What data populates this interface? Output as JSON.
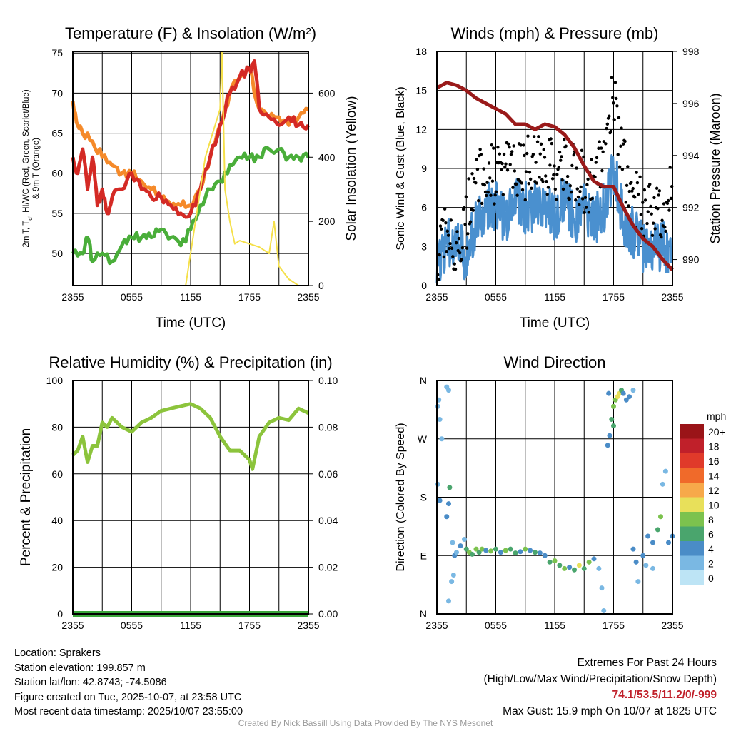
{
  "chart_data": [
    {
      "id": "temp",
      "type": "line",
      "title": "Temperature (F) & Insolation (W/m²)",
      "xlabel": "Time (UTC)",
      "ylabel": "2m T, Td, HI/WC (Red, Green, Scarlet/Blue) & 9m T (Orange)",
      "ylabel_line1": "2m T, T_d, HI/WC (Red, Green, Scarlet/Blue)",
      "ylabel_line2": "& 9m T (Orange)",
      "y2label": "Solar Insolation (Yellow)",
      "xlim": [
        0,
        24
      ],
      "ylim": [
        46,
        75.2
      ],
      "y2lim": [
        0,
        730
      ],
      "xticks": [
        "2355",
        "0555",
        "1155",
        "1755",
        "2355"
      ],
      "yticks": [
        50,
        55,
        60,
        65,
        70,
        75
      ],
      "y2ticks": [
        0,
        200,
        400,
        600
      ],
      "series": [
        {
          "name": "9m T",
          "color": "#f58a2a",
          "axis": "left",
          "x": [
            0,
            0.5,
            1,
            2,
            3,
            4,
            5,
            6,
            7,
            8,
            9,
            10,
            11,
            12,
            13,
            14,
            15,
            16,
            17,
            18,
            19,
            20,
            21,
            22,
            23,
            24
          ],
          "y": [
            69,
            66,
            65,
            64,
            62,
            61,
            60,
            60,
            59,
            58,
            57,
            56,
            56,
            56,
            58,
            62,
            66,
            70,
            72,
            73,
            68,
            67,
            67,
            66,
            67,
            68
          ]
        },
        {
          "name": "2m T",
          "color": "#d42a25",
          "axis": "left",
          "x": [
            0,
            0.5,
            1,
            1.5,
            2,
            2.5,
            3,
            3.5,
            4,
            5,
            6,
            7,
            8,
            9,
            10,
            11,
            12,
            13,
            14,
            15,
            16,
            17,
            18,
            18.5,
            19,
            20,
            21,
            22,
            23,
            24
          ],
          "y": [
            62,
            60,
            63,
            58,
            62,
            56,
            58,
            55,
            57,
            58,
            60,
            58,
            57,
            57,
            56,
            55,
            55,
            58,
            62,
            66,
            70,
            72,
            73,
            74,
            68,
            67,
            66,
            67,
            66,
            66
          ]
        },
        {
          "name": "Dew point",
          "color": "#4aae3a",
          "axis": "left",
          "x": [
            0,
            1,
            1.5,
            2,
            3,
            4,
            5,
            6,
            7,
            8,
            9,
            10,
            11,
            12,
            13,
            14,
            15,
            16,
            17,
            18,
            19,
            20,
            21,
            22,
            23,
            24
          ],
          "y": [
            50,
            50,
            52,
            49,
            50,
            49,
            51,
            52,
            52,
            52,
            53,
            52,
            51,
            53,
            56,
            58,
            59,
            61,
            62,
            62,
            62,
            63,
            63,
            62,
            62,
            62
          ]
        },
        {
          "name": "Solar",
          "color": "#f5e04a",
          "axis": "right",
          "width": 2,
          "x": [
            0,
            11.5,
            12,
            12.5,
            13,
            13.5,
            14,
            14.5,
            15,
            15.2,
            15.5,
            16,
            16.5,
            17,
            18,
            19,
            20,
            20.5,
            21,
            22,
            23,
            24
          ],
          "y": [
            0,
            0,
            100,
            200,
            300,
            400,
            450,
            500,
            550,
            730,
            300,
            200,
            130,
            140,
            130,
            120,
            100,
            200,
            60,
            20,
            0,
            0
          ]
        }
      ]
    },
    {
      "id": "wind",
      "type": "line",
      "title": "Winds (mph) & Pressure (mb)",
      "xlabel": "Time (UTC)",
      "ylabel": "Sonic Wind & Gust (Blue, Black)",
      "y2label": "Station Pressure (Maroon)",
      "xlim": [
        0,
        24
      ],
      "ylim": [
        0,
        18
      ],
      "y2lim": [
        989,
        998
      ],
      "xticks": [
        "2355",
        "0555",
        "1155",
        "1755",
        "2355"
      ],
      "yticks": [
        0,
        3,
        6,
        9,
        12,
        15,
        18
      ],
      "y2ticks": [
        990,
        992,
        994,
        996,
        998
      ],
      "series": [
        {
          "name": "Sonic Wind",
          "color": "#4a90cf",
          "axis": "left",
          "x": [
            0,
            1,
            2,
            3,
            4,
            5,
            6,
            7,
            8,
            9,
            10,
            11,
            12,
            13,
            14,
            15,
            16,
            17,
            18,
            19,
            20,
            21,
            22,
            23,
            24
          ],
          "y": [
            1,
            3,
            4,
            2,
            5,
            6,
            6,
            5,
            7,
            6,
            6,
            6,
            5,
            7,
            5,
            6,
            5,
            6,
            9,
            5,
            4,
            3,
            3,
            3,
            2
          ]
        },
        {
          "name": "Gust",
          "color": "#000000",
          "axis": "left",
          "scatter": true,
          "x": [
            0,
            1,
            2,
            3,
            4,
            5,
            6,
            7,
            8,
            9,
            10,
            11,
            12,
            13,
            14,
            15,
            16,
            17,
            18,
            19,
            20,
            21,
            22,
            23,
            24
          ],
          "y": [
            2,
            5,
            3,
            5,
            8,
            9,
            8,
            9,
            9,
            9,
            9,
            10,
            8,
            9,
            9,
            8,
            8,
            9,
            15,
            9,
            7,
            6,
            5,
            6,
            7
          ]
        },
        {
          "name": "Pressure",
          "color": "#9a1a1a",
          "axis": "right",
          "width": 5,
          "x": [
            0,
            1,
            2,
            3,
            4,
            5,
            6,
            7,
            8,
            9,
            10,
            11,
            12,
            13,
            14,
            15,
            16,
            17,
            18,
            19,
            20,
            21,
            22,
            23,
            24
          ],
          "y": [
            996.6,
            996.8,
            996.7,
            996.5,
            996.2,
            996.0,
            995.8,
            995.6,
            995.2,
            995.2,
            995.0,
            995.2,
            995.1,
            994.8,
            994.3,
            993.6,
            993.0,
            992.8,
            992.8,
            992.0,
            991.3,
            990.8,
            990.5,
            990.0,
            989.6
          ]
        }
      ]
    },
    {
      "id": "rh",
      "type": "line",
      "title": "Relative Humidity (%) & Precipitation (in)",
      "xlabel": "",
      "ylabel": "Percent & Precipitation",
      "xlim": [
        0,
        24
      ],
      "ylim": [
        0,
        100
      ],
      "y2lim": [
        0,
        0.1
      ],
      "xticks": [
        "2355",
        "0555",
        "1155",
        "1755",
        "2355"
      ],
      "yticks": [
        0,
        20,
        40,
        60,
        80,
        100
      ],
      "y2ticks": [
        "0.00",
        "0.02",
        "0.04",
        "0.06",
        "0.08",
        "0.10"
      ],
      "series": [
        {
          "name": "RH",
          "color": "#8cc43c",
          "axis": "left",
          "x": [
            0,
            0.5,
            1,
            1.5,
            2,
            2.5,
            3,
            3.5,
            4,
            5,
            6,
            7,
            8,
            9,
            10,
            11,
            12,
            13,
            14,
            15,
            16,
            17,
            18,
            18.3,
            19,
            20,
            21,
            22,
            23,
            24
          ],
          "y": [
            68,
            70,
            76,
            65,
            72,
            72,
            82,
            80,
            84,
            80,
            78,
            82,
            84,
            87,
            88,
            89,
            90,
            88,
            84,
            76,
            70,
            70,
            66,
            62,
            76,
            82,
            84,
            83,
            88,
            86
          ]
        },
        {
          "name": "Precipitation",
          "color": "#3aa63a",
          "axis": "right",
          "width": 8,
          "x": [
            0,
            24
          ],
          "y": [
            0,
            0
          ]
        }
      ]
    },
    {
      "id": "wdir",
      "type": "scatter",
      "title": "Wind Direction",
      "xlabel": "",
      "ylabel": "Direction (Colored By Speed)",
      "xlim": [
        0,
        24
      ],
      "ylim": [
        0,
        360
      ],
      "xticks": [
        "2355",
        "0555",
        "1155",
        "1755",
        "2355"
      ],
      "yticks": [
        "N",
        "E",
        "S",
        "W",
        "N"
      ],
      "legend": {
        "title": "mph",
        "labels": [
          "20+",
          "18",
          "16",
          "14",
          "12",
          "10",
          "8",
          "6",
          "4",
          "2",
          "0"
        ],
        "colors": [
          "#9a1418",
          "#c0202a",
          "#e03a2a",
          "#f06a2a",
          "#f7a94a",
          "#e8e05a",
          "#7cc24e",
          "#4aa56d",
          "#4a8cc7",
          "#7ab8e3",
          "#bde4f5"
        ]
      },
      "points": [
        [
          0.1,
          320,
          1
        ],
        [
          0.3,
          300,
          1
        ],
        [
          0.2,
          330,
          1
        ],
        [
          1,
          350,
          1
        ],
        [
          1.2,
          345,
          2
        ],
        [
          0.5,
          270,
          2
        ],
        [
          0.1,
          200,
          2
        ],
        [
          1.3,
          195,
          6
        ],
        [
          1.2,
          170,
          3
        ],
        [
          1,
          150,
          3
        ],
        [
          0.3,
          175,
          3
        ],
        [
          1.6,
          110,
          2
        ],
        [
          1.8,
          90,
          3
        ],
        [
          1.7,
          60,
          1
        ],
        [
          2,
          95,
          2
        ],
        [
          1.5,
          50,
          2
        ],
        [
          1.2,
          20,
          1
        ],
        [
          2.4,
          105,
          4
        ],
        [
          2.8,
          115,
          2
        ],
        [
          3,
          100,
          6
        ],
        [
          3.3,
          95,
          7
        ],
        [
          3.6,
          92,
          6
        ],
        [
          4,
          100,
          8
        ],
        [
          4.3,
          95,
          5
        ],
        [
          4.6,
          100,
          7
        ],
        [
          5,
          98,
          4
        ],
        [
          5.5,
          97,
          7
        ],
        [
          6,
          100,
          6
        ],
        [
          6.5,
          95,
          4
        ],
        [
          7,
          98,
          8
        ],
        [
          7.5,
          100,
          5
        ],
        [
          8,
          94,
          6
        ],
        [
          8.5,
          96,
          3
        ],
        [
          9,
          100,
          7
        ],
        [
          9.5,
          98,
          4
        ],
        [
          10,
          95,
          6
        ],
        [
          10.5,
          94,
          3
        ],
        [
          11,
          90,
          4
        ],
        [
          11.5,
          80,
          5
        ],
        [
          12,
          82,
          7
        ],
        [
          12.5,
          75,
          6
        ],
        [
          13,
          70,
          8
        ],
        [
          13.5,
          72,
          4
        ],
        [
          14,
          68,
          6
        ],
        [
          14.5,
          75,
          9
        ],
        [
          15,
          70,
          5
        ],
        [
          15.5,
          80,
          7
        ],
        [
          16,
          85,
          3
        ],
        [
          16.5,
          70,
          2
        ],
        [
          16.8,
          40,
          1
        ],
        [
          17,
          5,
          2
        ],
        [
          17.4,
          260,
          3
        ],
        [
          17.6,
          275,
          4
        ],
        [
          17.8,
          300,
          6
        ],
        [
          18,
          320,
          7
        ],
        [
          18.2,
          330,
          8
        ],
        [
          18.4,
          335,
          10
        ],
        [
          18.6,
          340,
          9
        ],
        [
          18.8,
          345,
          6
        ],
        [
          19,
          340,
          4
        ],
        [
          19.3,
          330,
          3
        ],
        [
          19.6,
          335,
          4
        ],
        [
          20,
          345,
          2
        ],
        [
          17.5,
          340,
          4
        ],
        [
          18,
          290,
          6
        ],
        [
          20,
          100,
          4
        ],
        [
          20.3,
          80,
          3
        ],
        [
          20.5,
          50,
          2
        ],
        [
          21,
          90,
          3
        ],
        [
          21.3,
          75,
          2
        ],
        [
          21.5,
          120,
          3
        ],
        [
          22,
          110,
          4
        ],
        [
          22.5,
          130,
          5
        ],
        [
          22.8,
          150,
          7
        ],
        [
          23,
          200,
          2
        ],
        [
          23.3,
          220,
          1
        ],
        [
          23.6,
          110,
          3
        ],
        [
          24,
          120,
          4
        ],
        [
          22,
          70,
          2
        ]
      ]
    }
  ],
  "footer": {
    "location": "Location: Sprakers",
    "elevation": "Station elevation: 199.857 m",
    "latlon": "Station lat/lon: 42.8743; -74.5086",
    "created": "Figure created on Tue, 2025-10-07, at 23:58 UTC",
    "recent": "Most recent data timestamp: 2025/10/07 23:55:00",
    "extremes_title": "Extremes For Past 24 Hours",
    "extremes_subtitle": "(High/Low/Max Wind/Precipitation/Snow Depth)",
    "extremes_values": "74.1/53.5/11.2/0/-999",
    "max_gust": "Max Gust: 15.9 mph On 10/07 at 1825 UTC",
    "credit": "Created By Nick Bassill Using Data Provided By The NYS Mesonet"
  }
}
